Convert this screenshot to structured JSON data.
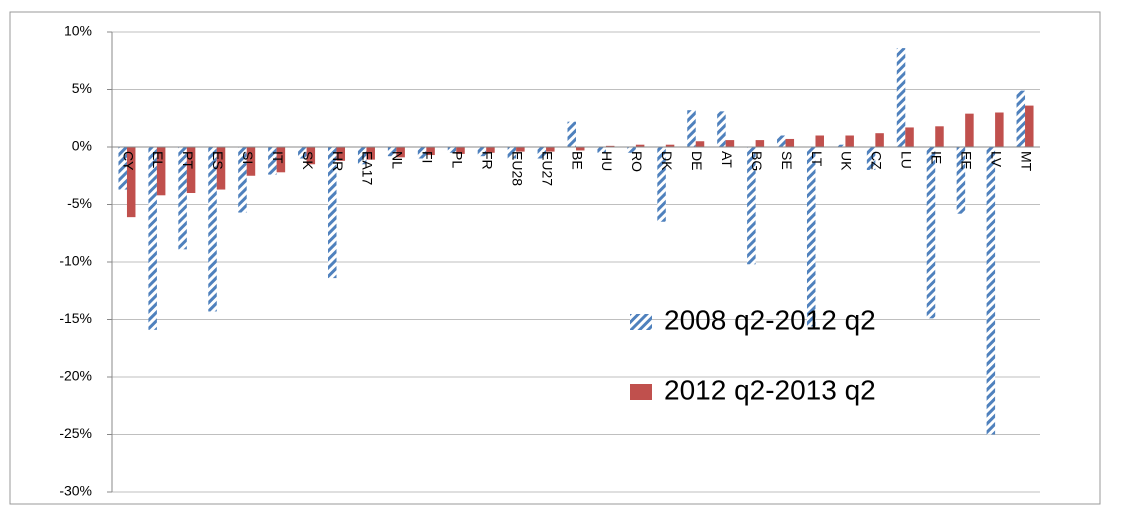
{
  "chart_data": {
    "type": "bar",
    "categories": [
      "CY",
      "EL",
      "PT",
      "ES",
      "SI",
      "IT",
      "SK",
      "HR",
      "EA17",
      "NL",
      "FI",
      "PL",
      "FR",
      "EU28",
      "EU27",
      "BE",
      "HU",
      "RO",
      "DK",
      "DE",
      "AT",
      "BG",
      "SE",
      "LT",
      "UK",
      "CZ",
      "LU",
      "IE",
      "EE",
      "LV",
      "MT"
    ],
    "series": [
      {
        "name": "2008 q2-2012 q2",
        "color": "#4f81bd",
        "pattern": "diagonal",
        "values": [
          -3.7,
          -15.9,
          -8.9,
          -14.3,
          -5.7,
          -2.4,
          -1.0,
          -11.4,
          -1.5,
          -0.8,
          -1.0,
          -0.5,
          -0.8,
          -1.0,
          -1.0,
          2.2,
          -0.5,
          -0.5,
          -6.5,
          3.2,
          3.1,
          -10.2,
          1.0,
          -15.6,
          0.2,
          -2.0,
          8.6,
          -14.9,
          -5.8,
          -25.0,
          4.9
        ]
      },
      {
        "name": "2012 q2-2013 q2",
        "color": "#c0504d",
        "pattern": "solid",
        "values": [
          -6.1,
          -4.2,
          -4.0,
          -3.7,
          -2.5,
          -2.2,
          -1.5,
          -1.2,
          -1.1,
          -0.9,
          -0.7,
          -0.6,
          -0.5,
          -0.4,
          -0.4,
          -0.3,
          0.1,
          0.2,
          0.2,
          0.5,
          0.6,
          0.6,
          0.7,
          1.0,
          1.0,
          1.2,
          1.7,
          1.8,
          2.9,
          3.0,
          3.6
        ]
      }
    ],
    "ylim": [
      -30,
      10
    ],
    "yticks": [
      {
        "value": -30,
        "label": "-30%"
      },
      {
        "value": -25,
        "label": "-25%"
      },
      {
        "value": -20,
        "label": "-20%"
      },
      {
        "value": -15,
        "label": "-15%"
      },
      {
        "value": -10,
        "label": "-10%"
      },
      {
        "value": -5,
        "label": "-5%"
      },
      {
        "value": 0,
        "label": "0%"
      },
      {
        "value": 5,
        "label": "5%"
      },
      {
        "value": 10,
        "label": "10%"
      }
    ],
    "grid": true,
    "legend": "right"
  }
}
